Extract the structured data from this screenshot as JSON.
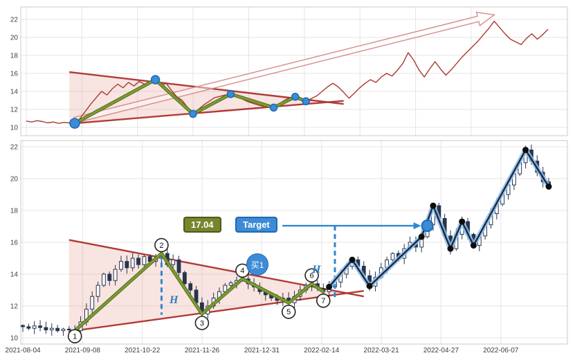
{
  "axes": {
    "y_ticks": [
      22,
      20,
      18,
      16,
      14,
      12,
      10
    ],
    "x_ticks": [
      "2021-08-04",
      "2021-09-08",
      "2021-10-22",
      "2021-11-26",
      "2021-12-31",
      "2022-02-14",
      "2022-03-21",
      "2022-04-27",
      "2022-06-07"
    ]
  },
  "chart_data": [
    {
      "type": "line",
      "name": "overview-price-line",
      "title": "",
      "xlabel": "",
      "ylabel": "",
      "grid": true,
      "ylim": [
        9.1,
        23.4
      ],
      "y_ticks": [
        22,
        20,
        18,
        16,
        14,
        12,
        10
      ],
      "series": [
        {
          "name": "close",
          "values": [
            10.7,
            10.6,
            10.75,
            10.65,
            10.5,
            10.6,
            10.45,
            10.55,
            10.5,
            10.45,
            11.0,
            11.8,
            12.6,
            13.3,
            14.0,
            13.6,
            14.3,
            14.8,
            14.4,
            15.0,
            14.6,
            15.1,
            14.8,
            15.0,
            15.3,
            14.6,
            14.9,
            14.1,
            13.4,
            13.0,
            12.2,
            11.5,
            12.0,
            12.5,
            12.9,
            13.3,
            13.45,
            13.6,
            13.7,
            13.4,
            13.2,
            12.9,
            12.7,
            12.5,
            12.35,
            12.5,
            12.2,
            12.6,
            13.0,
            13.3,
            13.4,
            13.1,
            12.9,
            13.2,
            13.5,
            14.0,
            14.5,
            14.9,
            14.5,
            13.9,
            13.25,
            13.8,
            14.4,
            14.9,
            15.3,
            15.0,
            15.6,
            16.0,
            15.7,
            16.35,
            17.1,
            18.3,
            17.5,
            16.4,
            15.6,
            16.5,
            17.3,
            16.5,
            15.8,
            16.4,
            17.1,
            17.8,
            18.4,
            19.0,
            19.6,
            20.3,
            21.0,
            21.8,
            21.1,
            20.4,
            19.8,
            19.5,
            19.2,
            19.9,
            20.4,
            19.8,
            20.3,
            20.9
          ]
        }
      ]
    },
    {
      "type": "candlestick",
      "name": "main-candles",
      "title": "",
      "xlabel": "",
      "ylabel": "",
      "grid": true,
      "ylim": [
        9.6,
        22.4
      ],
      "y_ticks": [
        22,
        20,
        18,
        16,
        14,
        12,
        10
      ],
      "x_tick_labels": [
        "2021-08-04",
        "2021-09-08",
        "2021-10-22",
        "2021-11-26",
        "2021-12-31",
        "2022-02-14",
        "2022-03-21",
        "2022-04-27",
        "2022-06-07"
      ],
      "close": [
        10.7,
        10.6,
        10.75,
        10.65,
        10.5,
        10.6,
        10.45,
        10.55,
        10.5,
        10.45,
        11.0,
        11.8,
        12.6,
        13.3,
        14.0,
        13.6,
        14.3,
        14.8,
        14.4,
        15.0,
        14.6,
        15.1,
        14.8,
        15.0,
        15.3,
        14.6,
        14.9,
        14.1,
        13.4,
        13.0,
        12.2,
        11.5,
        12.0,
        12.5,
        12.9,
        13.3,
        13.45,
        13.6,
        13.7,
        13.4,
        13.2,
        12.9,
        12.7,
        12.5,
        12.35,
        12.5,
        12.2,
        12.6,
        13.0,
        13.3,
        13.4,
        13.1,
        12.9,
        13.2,
        13.5,
        14.0,
        14.5,
        14.9,
        14.5,
        13.9,
        13.25,
        13.8,
        14.4,
        14.9,
        15.3,
        15.0,
        15.6,
        16.0,
        15.7,
        16.35,
        17.1,
        18.3,
        17.5,
        16.4,
        15.6,
        16.5,
        17.3,
        16.5,
        15.8,
        16.4,
        17.1,
        17.8,
        18.4,
        19.0,
        19.6,
        20.3,
        21.0,
        21.8,
        21.1,
        20.4,
        19.8,
        19.5
      ]
    }
  ],
  "annotations": {
    "measure_badge": "17.04",
    "target_badge": "Target",
    "buy_badge": "买1",
    "h1": "H",
    "h2": "H",
    "pivots": [
      {
        "label": "1",
        "index": 9,
        "side": "low"
      },
      {
        "label": "2",
        "index": 24,
        "side": "high"
      },
      {
        "label": "3",
        "index": 31,
        "side": "low"
      },
      {
        "label": "4",
        "index": 38,
        "side": "high"
      },
      {
        "label": "5",
        "index": 46,
        "side": "low"
      },
      {
        "label": "6",
        "index": 50,
        "side": "high"
      },
      {
        "label": "7",
        "index": 52,
        "side": "low"
      }
    ],
    "trend_dot_indexes": [
      53,
      57,
      60,
      69,
      71,
      74,
      76,
      78,
      87,
      91
    ],
    "target": {
      "index": 70,
      "value": 17.04
    },
    "dashed_lines": [
      {
        "index": 24,
        "from": 15.25,
        "to": 11.45
      },
      {
        "index": 54,
        "from": 17.04,
        "to": 12.35
      }
    ],
    "triangle": {
      "start_index": 8,
      "end_index": 59,
      "upper_from": 16.15,
      "upper_to": 12.6,
      "lower_from": 10.4,
      "lower_to": 12.95
    },
    "arrow": {
      "from_index": 9,
      "from_value": 10.8,
      "to_index": 87,
      "to_value": 22.5
    }
  },
  "colors": {
    "price_line": "#a8392f",
    "trendline": "#b03a36",
    "triangle_fill": "rgba(222,130,118,0.22)",
    "zigzag": "#7d9c33",
    "zigzag_edge": "#55701e",
    "pivot_dot": "#3d8bd4",
    "pivot_dot_edge": "#1a6ab8",
    "trend_navy": "#1b2840",
    "trend_glow": "rgba(141,191,235,0.85)",
    "swing_dot": "#0d0d0d",
    "dashed_blue": "#2f86d0",
    "candle": "#26344f",
    "candle_up_fill": "#ffffff",
    "grid": "#e4e4e4",
    "border": "#c9c9c9",
    "axis_text": "#404040",
    "arrow_outline": "#d89090",
    "badge_olive_bg": "#76862c",
    "badge_olive_border": "#4c591c",
    "badge_blue_bg": "#3d8bd4",
    "badge_blue_border": "#1a6ab8",
    "h_label": "#2e7fc2"
  }
}
